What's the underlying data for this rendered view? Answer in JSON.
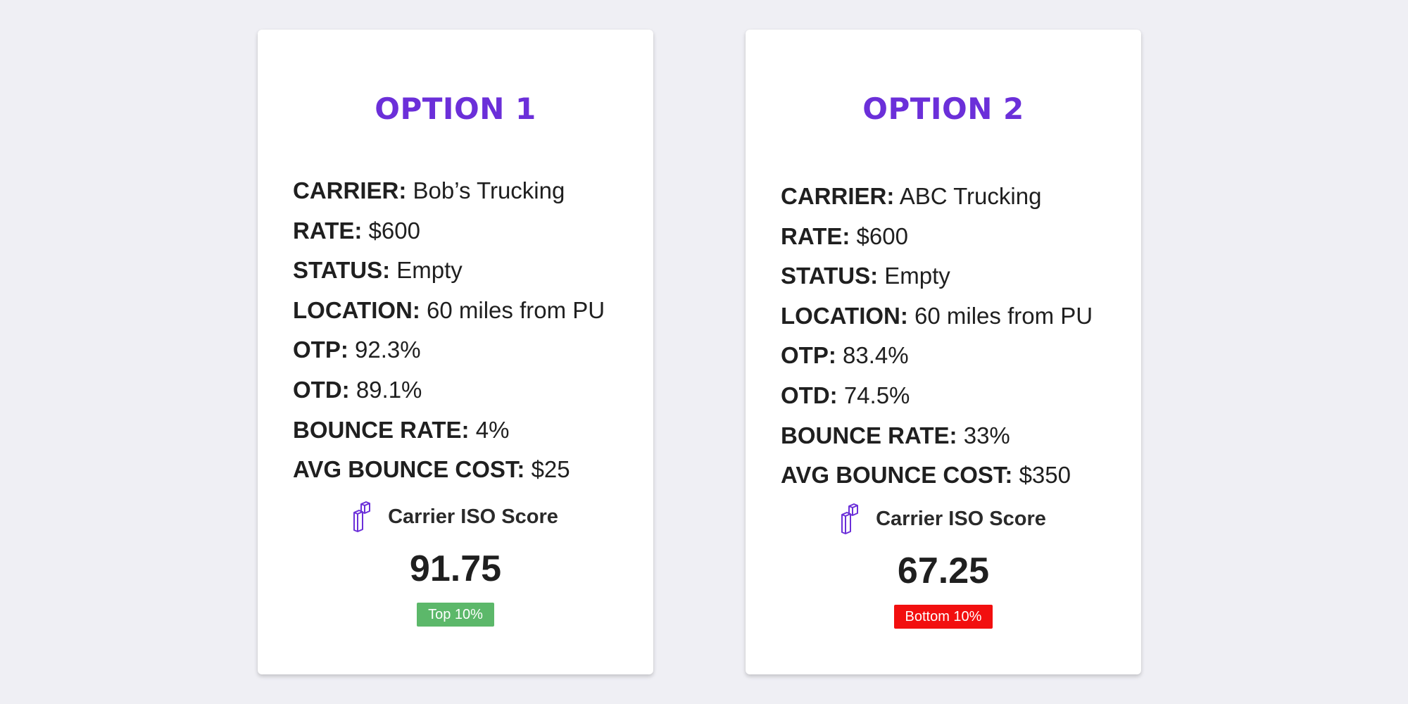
{
  "colors": {
    "background": "#efeff4",
    "card": "#ffffff",
    "accent_purple": "#6b2fd9",
    "top_badge": "#5cb86a",
    "bottom_badge": "#f20f0f"
  },
  "options": [
    {
      "title": "OPTION 1",
      "fields": [
        {
          "label": "CARRIER:",
          "value": "Bob’s Trucking"
        },
        {
          "label": "RATE:",
          "value": "$600"
        },
        {
          "label": "STATUS:",
          "value": "Empty"
        },
        {
          "label": "LOCATION:",
          "value": "60 miles from PU"
        },
        {
          "label": "OTP:",
          "value": "92.3%"
        },
        {
          "label": "OTD:",
          "value": "89.1%"
        },
        {
          "label": "BOUNCE RATE:",
          "value": "4%"
        },
        {
          "label": "AVG BOUNCE COST:",
          "value": "$25"
        }
      ],
      "iso": {
        "icon": "building-blocks-icon",
        "label": "Carrier ISO Score",
        "score": "91.75",
        "badge": "Top 10%"
      }
    },
    {
      "title": "OPTION 2",
      "fields": [
        {
          "label": "CARRIER:",
          "value": "ABC Trucking"
        },
        {
          "label": "RATE:",
          "value": "$600"
        },
        {
          "label": "STATUS:",
          "value": "Empty"
        },
        {
          "label": "LOCATION:",
          "value": "60 miles from PU"
        },
        {
          "label": "OTP:",
          "value": "83.4%"
        },
        {
          "label": "OTD:",
          "value": "74.5%"
        },
        {
          "label": "BOUNCE RATE:",
          "value": "33%"
        },
        {
          "label": "AVG BOUNCE COST:",
          "value": "$350"
        }
      ],
      "iso": {
        "icon": "building-blocks-icon",
        "label": "Carrier ISO Score",
        "score": "67.25",
        "badge": "Bottom 10%"
      }
    }
  ]
}
